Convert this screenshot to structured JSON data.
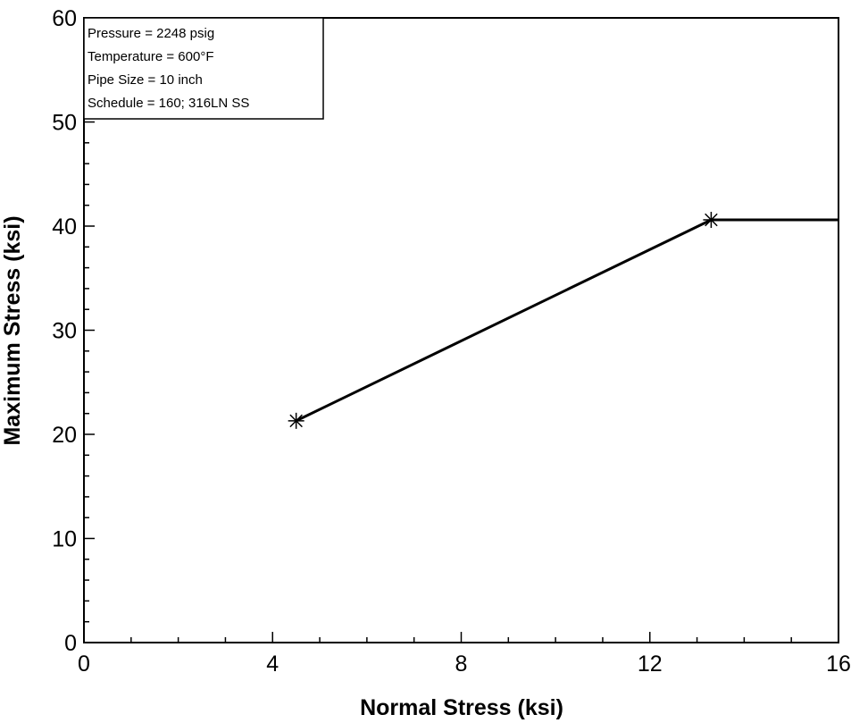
{
  "chart_data": {
    "type": "line",
    "title": "",
    "xlabel": "Normal Stress (ksi)",
    "ylabel": "Maximum Stress (ksi)",
    "xlim": [
      0,
      16
    ],
    "ylim": [
      0,
      60
    ],
    "x_ticks": [
      0,
      4,
      8,
      12,
      16
    ],
    "y_ticks": [
      0,
      10,
      20,
      30,
      40,
      50,
      60
    ],
    "x_minor_step": 1,
    "y_minor_step": 2,
    "grid": false,
    "legend_position": "top-left",
    "series": [
      {
        "x": [
          4.5,
          13.3,
          16
        ],
        "y": [
          21.3,
          40.6,
          40.6
        ],
        "markers": [
          [
            4.5,
            21.3
          ],
          [
            13.3,
            40.6
          ]
        ],
        "marker": "asterisk",
        "color": "#000000"
      }
    ],
    "annotations": [
      "Pressure = 2248 psig",
      "Temperature = 600°F",
      "Pipe Size = 10 inch",
      "Schedule = 160; 316LN SS"
    ]
  }
}
